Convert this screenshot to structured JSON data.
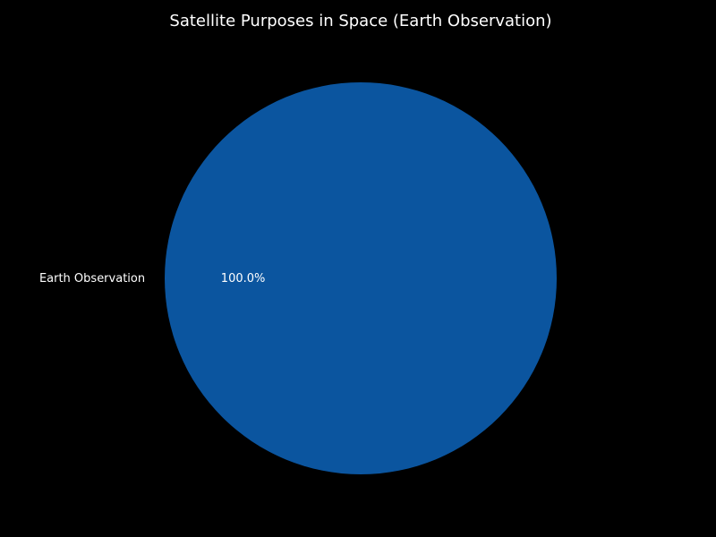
{
  "chart_data": {
    "type": "pie",
    "title": "Satellite Purposes in Space (Earth Observation)",
    "categories": [
      "Earth Observation"
    ],
    "values": [
      100
    ],
    "percent_labels": [
      "100.0%"
    ],
    "colors": [
      "#0b559f"
    ],
    "legend": "none",
    "grid": false
  }
}
